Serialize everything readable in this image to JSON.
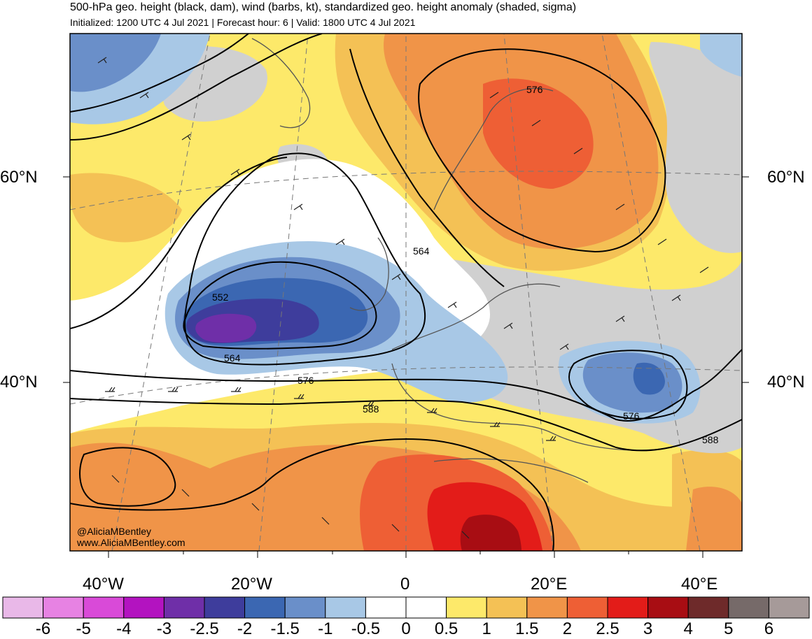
{
  "header": {
    "title": "500-hPa geo. height (black, dam), wind (barbs, kt), standardized geo. height anomaly (shaded, sigma)",
    "subtitle": "Initialized: 1200 UTC 4 Jul 2021 | Forecast hour: 6 | Valid: 1800 UTC 4 Jul 2021"
  },
  "map": {
    "region": "North Atlantic and Europe",
    "lat_labels": [
      "60°N",
      "40°N"
    ],
    "lon_labels": [
      "40°W",
      "20°W",
      "0",
      "20°E",
      "40°E"
    ],
    "contour_labels": [
      "576",
      "564",
      "552",
      "564",
      "576",
      "588",
      "576",
      "588"
    ],
    "credit": [
      "@AliciaMBentley",
      "www.AliciaMBentley.com"
    ]
  },
  "colorbar": {
    "labels": [
      "-6",
      "-5",
      "-4",
      "-3",
      "-2.5",
      "-2",
      "-1.5",
      "-1",
      "-0.5",
      "0",
      "0.5",
      "1",
      "1.5",
      "2",
      "2.5",
      "3",
      "4",
      "5",
      "6"
    ],
    "colors": [
      "#e9b8e8",
      "#e782e3",
      "#d94ad8",
      "#b313c0",
      "#6f2fa8",
      "#3e3d9c",
      "#3b67b2",
      "#6a8fc9",
      "#a8c8e6",
      "#ffffff",
      "#ffffff",
      "#fde96a",
      "#f4c155",
      "#f09448",
      "#ee5f35",
      "#e31c19",
      "#a80d13",
      "#6e2a2a",
      "#766a69",
      "#a69a99"
    ]
  }
}
